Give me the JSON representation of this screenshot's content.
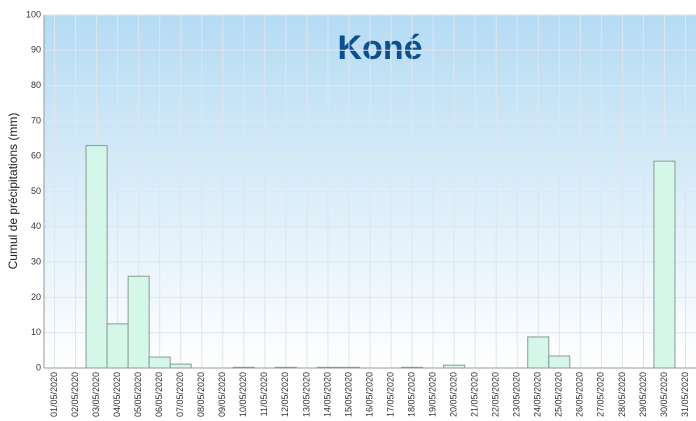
{
  "chart_data": {
    "type": "bar",
    "title": "Koné",
    "y_label": "Cumul de précipitations (mm)",
    "categories": [
      "01/05/2020",
      "02/05/2020",
      "03/05/2020",
      "04/05/2020",
      "05/05/2020",
      "06/05/2020",
      "07/05/2020",
      "08/05/2020",
      "09/05/2020",
      "10/05/2020",
      "11/05/2020",
      "12/05/2020",
      "13/05/2020",
      "14/05/2020",
      "15/05/2020",
      "16/05/2020",
      "17/05/2020",
      "18/05/2020",
      "19/05/2020",
      "20/05/2020",
      "21/05/2020",
      "22/05/2020",
      "23/05/2020",
      "24/05/2020",
      "25/05/2020",
      "26/05/2020",
      "27/05/2020",
      "28/05/2020",
      "29/05/2020",
      "30/05/2020",
      "31/05/2020"
    ],
    "values": [
      0,
      0,
      63,
      12.5,
      26,
      3.1,
      1.1,
      0,
      0,
      0.2,
      0,
      0.2,
      0,
      0.2,
      0.2,
      0,
      0,
      0.2,
      0,
      0.8,
      0,
      0,
      0,
      8.8,
      3.4,
      0,
      0,
      0,
      0,
      58.6,
      0
    ],
    "color": "#d5f7ea",
    "ylim": [
      0,
      100
    ],
    "yticks": [
      0,
      10,
      20,
      30,
      40,
      50,
      60,
      70,
      80,
      90,
      100
    ],
    "grid": true
  }
}
